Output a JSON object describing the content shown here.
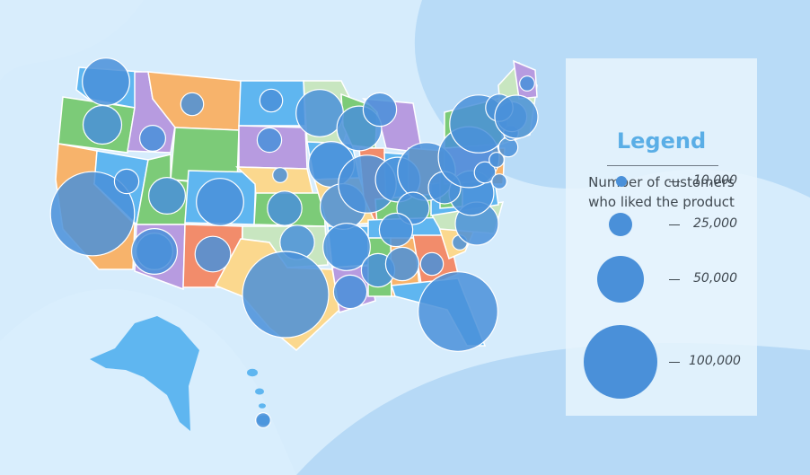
{
  "legend": {
    "title": "Legend",
    "subtitle_line1": "Number of customers",
    "subtitle_line2": "who liked the product",
    "entries": [
      {
        "label": "10,000",
        "value": 10000
      },
      {
        "label": "25,000",
        "value": 25000
      },
      {
        "label": "50,000",
        "value": 50000
      },
      {
        "label": "100,000",
        "value": 100000
      }
    ]
  },
  "colors": {
    "background": "#c9e4f9",
    "bubble": "#4a90d9",
    "legend_title": "#5aaee6",
    "state_palette": [
      "#f7b36b",
      "#7ccb78",
      "#9aaee8",
      "#f28c6b",
      "#5fb6f0",
      "#fbd88e",
      "#b79be0",
      "#c8e6c0"
    ]
  },
  "chart_data": {
    "type": "bubble-map",
    "region": "United States",
    "measure": "Number of customers who liked the product",
    "points": [
      {
        "state": "Washington",
        "value": 30000
      },
      {
        "state": "Oregon",
        "value": 20000
      },
      {
        "state": "California",
        "value": 95000
      },
      {
        "state": "Nevada",
        "value": 8000
      },
      {
        "state": "Idaho",
        "value": 9000
      },
      {
        "state": "Montana",
        "value": 7000
      },
      {
        "state": "Wyoming",
        "value": 18000
      },
      {
        "state": "Utah",
        "value": 18000
      },
      {
        "state": "Colorado",
        "value": 30000
      },
      {
        "state": "Arizona",
        "value": 28000
      },
      {
        "state": "New Mexico",
        "value": 17000
      },
      {
        "state": "North Dakota",
        "value": 7000
      },
      {
        "state": "South Dakota",
        "value": 8000
      },
      {
        "state": "Nebraska",
        "value": 3000
      },
      {
        "state": "Kansas",
        "value": 16000
      },
      {
        "state": "Oklahoma",
        "value": 16000
      },
      {
        "state": "Texas",
        "value": 100000
      },
      {
        "state": "Minnesota",
        "value": 30000
      },
      {
        "state": "Iowa",
        "value": 28000
      },
      {
        "state": "Missouri",
        "value": 28000
      },
      {
        "state": "Arkansas",
        "value": 30000
      },
      {
        "state": "Louisiana",
        "value": 15000
      },
      {
        "state": "Wisconsin",
        "value": 27000
      },
      {
        "state": "Illinois",
        "value": 45000
      },
      {
        "state": "Michigan",
        "value": 15000
      },
      {
        "state": "Indiana",
        "value": 27000
      },
      {
        "state": "Ohio",
        "value": 45000
      },
      {
        "state": "Kentucky",
        "value": 14000
      },
      {
        "state": "Tennessee",
        "value": 15000
      },
      {
        "state": "Mississippi",
        "value": 15000
      },
      {
        "state": "Alabama",
        "value": 15000
      },
      {
        "state": "Georgia",
        "value": 7000
      },
      {
        "state": "Florida",
        "value": 85000
      },
      {
        "state": "South Carolina",
        "value": 3000
      },
      {
        "state": "North Carolina",
        "value": 25000
      },
      {
        "state": "Virginia",
        "value": 27000
      },
      {
        "state": "West Virginia",
        "value": 14000
      },
      {
        "state": "Pennsylvania",
        "value": 50000
      },
      {
        "state": "New York",
        "value": 45000
      },
      {
        "state": "New Jersey",
        "value": 6000
      },
      {
        "state": "Delaware",
        "value": 3000
      },
      {
        "state": "Maryland",
        "value": 3000
      },
      {
        "state": "Connecticut",
        "value": 5000
      },
      {
        "state": "Rhode Island",
        "value": 3000
      },
      {
        "state": "Massachusetts",
        "value": 12000
      },
      {
        "state": "Vermont",
        "value": 10000
      },
      {
        "state": "New Hampshire",
        "value": 25000
      },
      {
        "state": "Maine",
        "value": 3000
      },
      {
        "state": "Hawaii",
        "value": 3000
      }
    ]
  }
}
